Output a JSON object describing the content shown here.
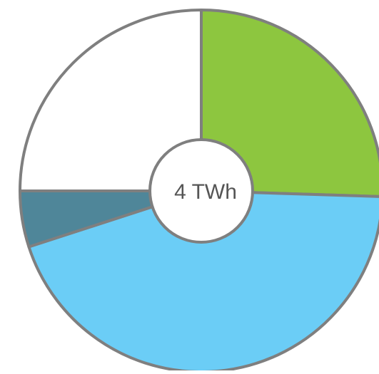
{
  "chart_data": {
    "type": "pie",
    "center_label": "4 TWh",
    "slices": [
      {
        "value": 25.5,
        "color": "#8dc63f"
      },
      {
        "value": 44.5,
        "color": "#6bcdf6"
      },
      {
        "value": 5.0,
        "color": "#4f8699"
      },
      {
        "value": 25.0,
        "color": "#ffffff"
      }
    ],
    "start_angle_deg": 0,
    "direction": "clockwise",
    "outline_color": "#7f7f7f",
    "label_color": "#555555",
    "background": "#ffffff"
  }
}
